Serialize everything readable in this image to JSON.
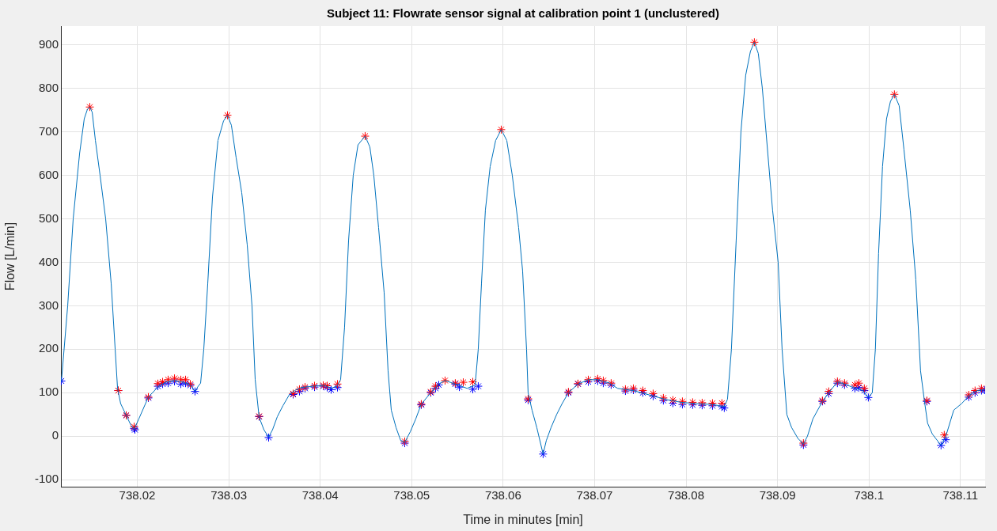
{
  "chart_data": {
    "type": "line",
    "title": "Subject 11: Flowrate sensor signal at calibration point 1 (unclustered)",
    "xlabel": "Time in minutes [min]",
    "ylabel": "Flow [L/min]",
    "xlim": [
      738.01165,
      738.1127
    ],
    "ylim": [
      -116,
      943
    ],
    "xticks": [
      738.02,
      738.03,
      738.04,
      738.05,
      738.06,
      738.07,
      738.08,
      738.09,
      738.1,
      738.11
    ],
    "yticks": [
      -100,
      0,
      100,
      200,
      300,
      400,
      500,
      600,
      700,
      800,
      900
    ],
    "grid": true,
    "legend": false,
    "series": [
      {
        "type": "line",
        "color": "#0072bd",
        "marker": "none",
        "line_style": "solid",
        "x": [
          738.0117,
          738.01239,
          738.01299,
          738.01369,
          738.0142,
          738.01455,
          738.01481,
          738.01507,
          738.01542,
          738.01593,
          738.01654,
          738.01715,
          738.01758,
          738.01784,
          738.01818,
          738.01879,
          738.01931,
          738.01965,
          738.02017,
          738.02121,
          738.02234,
          738.0232,
          738.02407,
          738.02493,
          738.0258,
          738.02631,
          738.02666,
          738.02692,
          738.02727,
          738.0277,
          738.02822,
          738.02882,
          738.02943,
          738.02986,
          738.03029,
          738.03081,
          738.03142,
          738.03202,
          738.03254,
          738.03289,
          738.03332,
          738.03384,
          738.03436,
          738.03479,
          738.03531,
          738.03592,
          738.03661,
          738.03721,
          738.03791,
          738.0392,
          738.0405,
          738.04119,
          738.0418,
          738.04223,
          738.04266,
          738.0431,
          738.04361,
          738.04413,
          738.04491,
          738.04543,
          738.04586,
          738.04638,
          738.04699,
          738.04742,
          738.04777,
          738.04829,
          738.0488,
          738.04924,
          738.04984,
          738.05045,
          738.05105,
          738.05209,
          738.05296,
          738.05365,
          738.05477,
          738.05607,
          738.05694,
          738.05728,
          738.05763,
          738.05806,
          738.05858,
          738.05918,
          738.05979,
          738.0604,
          738.061,
          738.06169,
          738.06213,
          738.06256,
          738.06273,
          738.06316,
          738.06368,
          738.06437,
          738.06472,
          738.06524,
          738.06585,
          738.06645,
          738.06714,
          738.06818,
          738.06931,
          738.07034,
          738.07164,
          738.07251,
          738.07424,
          738.07597,
          738.0777,
          738.07943,
          738.08116,
          738.08289,
          738.08418,
          738.08453,
          738.08496,
          738.08548,
          738.086,
          738.08652,
          738.08704,
          738.08747,
          738.0879,
          738.08834,
          738.08894,
          738.08946,
          738.09007,
          738.0905,
          738.09102,
          738.09154,
          738.09223,
          738.09283,
          738.09327,
          738.09387,
          738.09491,
          738.0956,
          738.09655,
          738.09733,
          738.09828,
          738.09932,
          738.09993,
          738.10036,
          738.1007,
          738.10105,
          738.10148,
          738.10192,
          738.10235,
          738.10278,
          738.1033,
          738.10382,
          738.10451,
          738.10512,
          738.10564,
          738.10607,
          738.10641,
          738.10693,
          738.10788,
          738.1084,
          738.10927,
          738.11013,
          738.111,
          738.11186,
          738.11264
        ],
        "values": [
          125,
          300,
          500,
          650,
          730,
          752,
          757,
          745,
          680,
          600,
          500,
          350,
          200,
          110,
          75,
          48,
          25,
          16,
          40,
          90,
          115,
          125,
          128,
          125,
          118,
          103,
          115,
          122,
          200,
          350,
          550,
          680,
          725,
          738,
          715,
          640,
          560,
          440,
          300,
          130,
          44,
          15,
          -2,
          15,
          45,
          70,
          95,
          105,
          112,
          115,
          117,
          110,
          115,
          130,
          250,
          450,
          600,
          670,
          690,
          665,
          600,
          480,
          330,
          150,
          60,
          20,
          -10,
          -14,
          10,
          40,
          74,
          100,
          120,
          128,
          120,
          110,
          118,
          200,
          350,
          520,
          620,
          680,
          705,
          680,
          600,
          480,
          380,
          200,
          100,
          60,
          20,
          -41,
          -10,
          20,
          50,
          75,
          100,
          120,
          130,
          130,
          122,
          110,
          105,
          95,
          85,
          78,
          75,
          73,
          68,
          85,
          200,
          450,
          700,
          830,
          885,
          906,
          880,
          800,
          650,
          520,
          400,
          200,
          50,
          20,
          -5,
          -18,
          0,
          40,
          80,
          100,
          125,
          120,
          112,
          105,
          89,
          100,
          200,
          420,
          620,
          730,
          770,
          786,
          760,
          660,
          520,
          360,
          150,
          80,
          30,
          5,
          -21,
          0,
          60,
          75,
          95,
          105,
          107
        ]
      },
      {
        "type": "scatter",
        "color": "#ff0000",
        "marker": "cross",
        "x": [
          738.01481,
          738.02986,
          738.04491,
          738.05979,
          738.08747,
          738.10278,
          738.01792,
          738.01879,
          738.01965,
          738.02121,
          738.02225,
          738.02277,
          738.02337,
          738.02407,
          738.02476,
          738.02528,
          738.0258,
          738.03332,
          738.03704,
          738.03773,
          738.03834,
          738.03938,
          738.04033,
          738.04076,
          738.04189,
          738.04924,
          738.05105,
          738.05209,
          738.05261,
          738.05365,
          738.05477,
          738.05564,
          738.05668,
          738.06273,
          738.06714,
          738.06818,
          738.06931,
          738.07034,
          738.07095,
          738.07181,
          738.07337,
          738.07424,
          738.07527,
          738.0764,
          738.07752,
          738.07856,
          738.0796,
          738.08072,
          738.08176,
          738.08289,
          738.08392,
          738.09283,
          738.09491,
          738.0956,
          738.09655,
          738.09733,
          738.09846,
          738.09889,
          738.09949,
          738.10633,
          738.10823,
          738.11091,
          738.1116,
          738.1123
        ],
        "values": [
          757,
          738,
          690,
          705,
          906,
          786,
          105,
          48,
          22,
          90,
          121,
          125,
          130,
          133,
          130,
          130,
          120,
          46,
          98,
          108,
          113,
          116,
          117,
          116,
          120,
          -12,
          74,
          102,
          115,
          128,
          122,
          124,
          125,
          86,
          102,
          121,
          130,
          132,
          128,
          122,
          108,
          110,
          105,
          98,
          88,
          83,
          80,
          78,
          77,
          76,
          76,
          -16,
          82,
          103,
          126,
          122,
          118,
          122,
          110,
          82,
          3,
          95,
          105,
          110
        ]
      },
      {
        "type": "scatter",
        "color": "#0000ff",
        "marker": "cross",
        "x": [
          738.0117,
          738.01792,
          738.01879,
          738.01965,
          738.01974,
          738.02121,
          738.02225,
          738.02277,
          738.02337,
          738.02407,
          738.02476,
          738.02528,
          738.0258,
          738.02631,
          738.03332,
          738.03436,
          738.03704,
          738.03773,
          738.03834,
          738.03938,
          738.04033,
          738.04076,
          738.04119,
          738.04189,
          738.04924,
          738.05105,
          738.05209,
          738.05261,
          738.05296,
          738.05477,
          738.05521,
          738.05668,
          738.05728,
          738.06273,
          738.06437,
          738.06714,
          738.06818,
          738.06931,
          738.07034,
          738.07095,
          738.07181,
          738.07337,
          738.07424,
          738.07527,
          738.0764,
          738.07752,
          738.07856,
          738.0796,
          738.08072,
          738.08176,
          738.08289,
          738.08392,
          738.08418,
          738.09283,
          738.09491,
          738.0956,
          738.09655,
          738.09733,
          738.09846,
          738.09889,
          738.09949,
          738.09993,
          738.10633,
          738.10788,
          738.1084,
          738.11091,
          738.1116,
          738.1123,
          738.11264
        ],
        "values": [
          127,
          105,
          48,
          18,
          15,
          88,
          115,
          120,
          122,
          126,
          120,
          122,
          117,
          103,
          45,
          -3,
          96,
          103,
          110,
          113,
          115,
          112,
          107,
          112,
          -16,
          72,
          100,
          110,
          118,
          120,
          113,
          108,
          115,
          83,
          -41,
          100,
          120,
          125,
          127,
          122,
          118,
          104,
          106,
          100,
          92,
          82,
          76,
          73,
          72,
          71,
          70,
          68,
          65,
          -20,
          80,
          98,
          122,
          118,
          110,
          112,
          105,
          89,
          80,
          -21,
          -8,
          90,
          100,
          105,
          106
        ]
      }
    ]
  }
}
